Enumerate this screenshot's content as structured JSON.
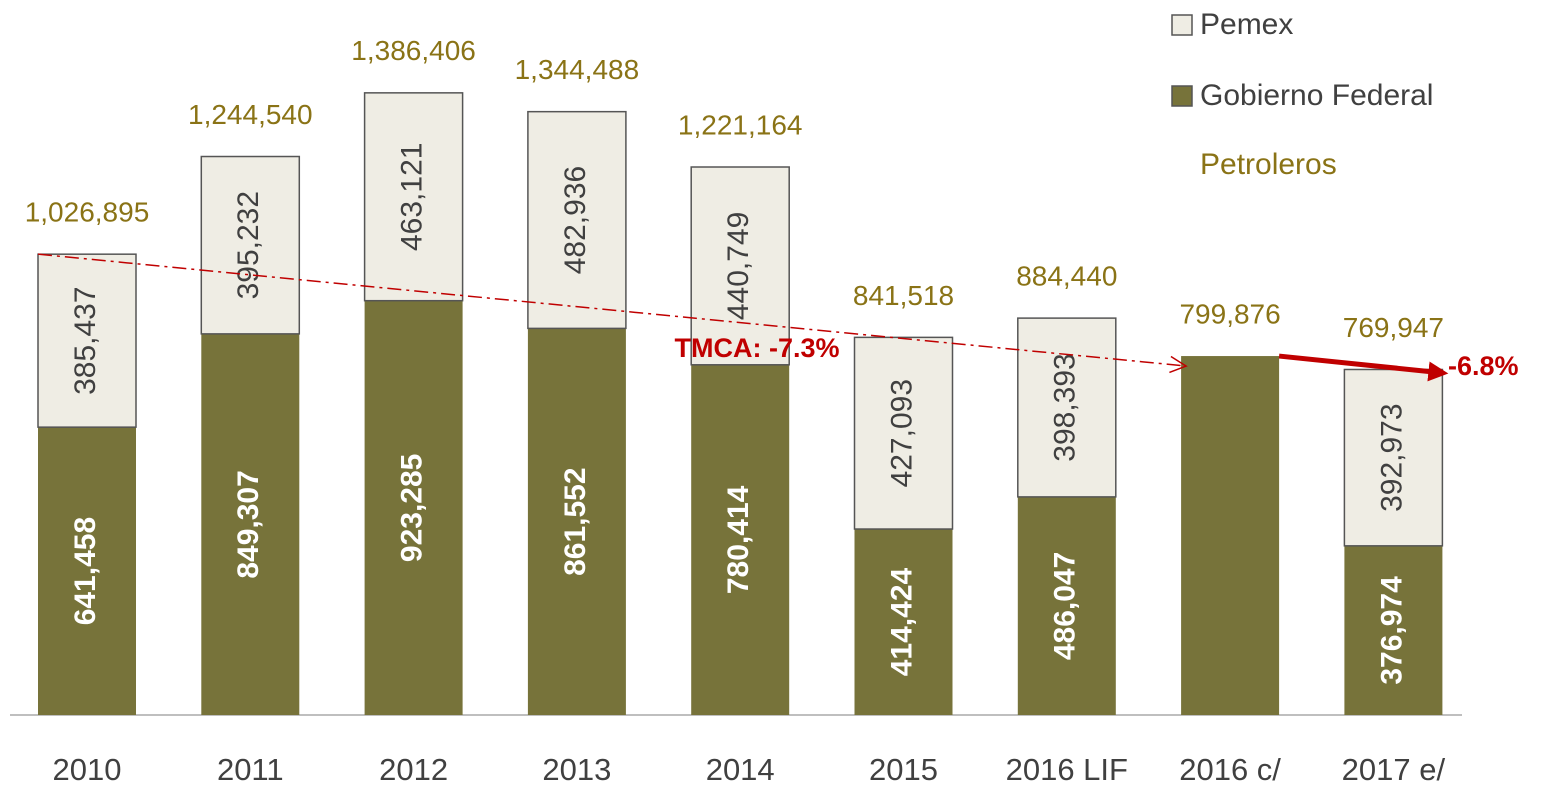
{
  "chart_data": {
    "type": "stacked-bar",
    "categories": [
      "2010",
      "2011",
      "2012",
      "2013",
      "2014",
      "2015",
      "2016 LIF",
      "2016 c/",
      "2017 e/"
    ],
    "series": [
      {
        "name": "Gobierno Federal",
        "color": "#77733a",
        "values": [
          641458,
          849307,
          923285,
          861552,
          780414,
          414424,
          486047,
          799876,
          376974
        ],
        "value_labels": [
          "641,458",
          "849,307",
          "923,285",
          "861,552",
          "780,414",
          "414,424",
          "486,047",
          null,
          "376,974"
        ]
      },
      {
        "name": "Pemex",
        "color": "#efede4",
        "values": [
          385437,
          395232,
          463121,
          482936,
          440749,
          427093,
          398393,
          null,
          392973
        ],
        "value_labels": [
          "385,437",
          "395,232",
          "463,121",
          "482,936",
          "440,749",
          "427,093",
          "398,393",
          null,
          "392,973"
        ]
      }
    ],
    "totals": {
      "values": [
        1026895,
        1244540,
        1386406,
        1344488,
        1221164,
        841518,
        884440,
        799876,
        769947
      ],
      "value_labels": [
        "1,026,895",
        "1,244,540",
        "1,386,406",
        "1,344,488",
        "1,221,164",
        "841,518",
        "884,440",
        "799,876",
        "769,947"
      ]
    },
    "legend_title": "Petroleros",
    "annotations": [
      "TMCA: -7.3%",
      "-6.8%"
    ],
    "ylim": [
      0,
      1600000
    ]
  }
}
